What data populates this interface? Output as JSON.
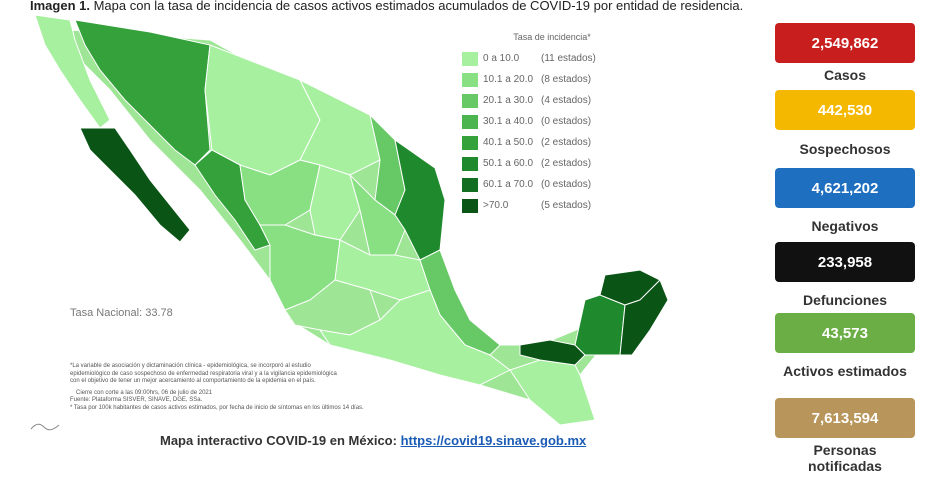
{
  "caption": {
    "bold": "Imagen 1.",
    "text": " Mapa con la tasa de incidencia de casos activos estimados acumulados de COVID-19 por entidad de residencia."
  },
  "legend": {
    "title": "Tasa de incidencia*",
    "rows": [
      {
        "range": "0  a  10.0",
        "count": "(11 estados)",
        "color": "#a7f0a0"
      },
      {
        "range": "10.1 a  20.0",
        "count": "(8 estados)",
        "color": "#88e083"
      },
      {
        "range": "20.1 a  30.0",
        "count": "(4 estados)",
        "color": "#66c965"
      },
      {
        "range": "30.1 a  40.0",
        "count": "(0 estados)",
        "color": "#4db54f"
      },
      {
        "range": "40.1 a  50.0",
        "count": "(2 estados)",
        "color": "#34a13b"
      },
      {
        "range": "50.1 a  60.0",
        "count": "(2 estados)",
        "color": "#1f8a2d"
      },
      {
        "range": "60.1 a  70.0",
        "count": "(0 estados)",
        "color": "#126f21"
      },
      {
        "range": ">70.0",
        "count": "(5 estados)",
        "color": "#0a5416"
      }
    ]
  },
  "national_rate": "Tasa Nacional: 33.78",
  "notes": [
    "*La variable de asociación y dictaminación clínica - epidemiológica, se incorporó al estudio",
    "epidemiológico de caso sospechoso de enfermedad respiratoria viral y a la vigilancia epidemiológica",
    "con el objetivo de tener un mejor acercamiento al comportamiento de la epidemia en el país.",
    "Cierre con corte a las 09:00hrs, 06 de julio de 2021",
    "Fuente: Plataforma SISVER, SINAVE, DGE, SSa.",
    "* Tasa por 100k habitantes de casos activos estimados, por fecha de inicio de síntomas en los últimos 14 días."
  ],
  "link_line": {
    "text": "Mapa interactivo COVID-19 en México: ",
    "url": "https://covid19.sinave.gob.mx"
  },
  "stats": [
    {
      "value": "2,549,862",
      "label": "Casos",
      "color": "#c81e1e"
    },
    {
      "value": "442,530",
      "label": "Sospechosos",
      "color": "#f5b800"
    },
    {
      "value": "4,621,202",
      "label": "Negativos",
      "color": "#1f6fc0"
    },
    {
      "value": "233,958",
      "label": "Defunciones",
      "color": "#111111"
    },
    {
      "value": "43,573",
      "label": "Activos estimados",
      "color": "#6aae45"
    },
    {
      "value": "7,613,594",
      "label": "Personas notificadas",
      "color": "#b8955a"
    }
  ]
}
